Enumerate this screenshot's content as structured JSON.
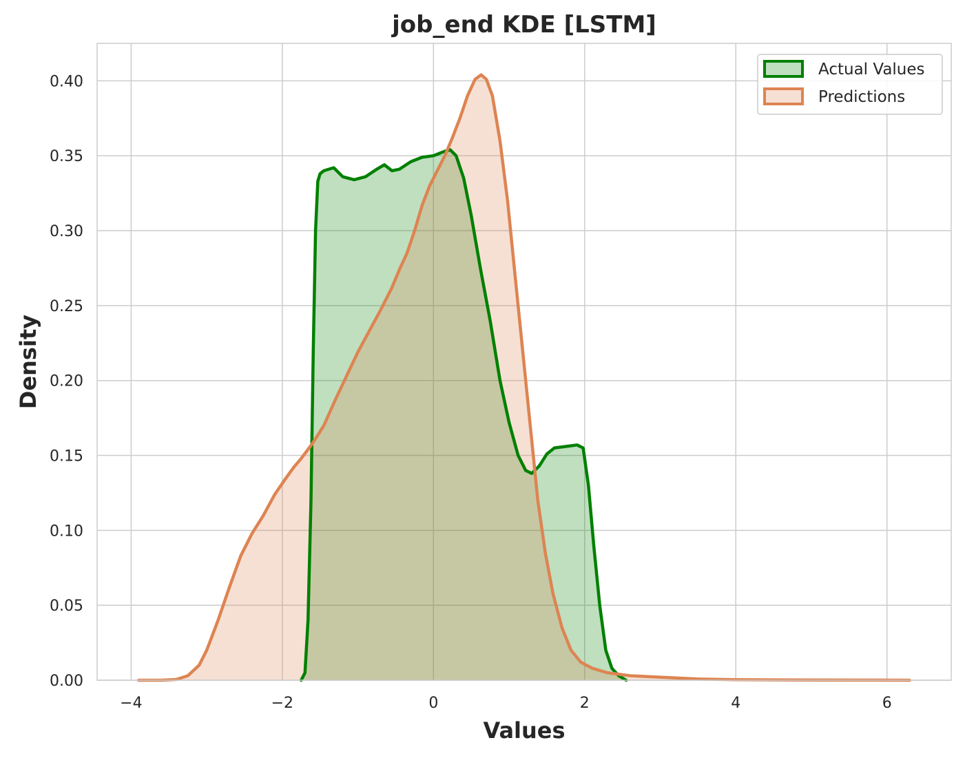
{
  "chart_data": {
    "type": "area",
    "title": "job_end KDE [LSTM]",
    "xlabel": "Values",
    "ylabel": "Density",
    "xlim": [
      -4.45,
      6.85
    ],
    "ylim": [
      0,
      0.425
    ],
    "xticks": [
      -4,
      -2,
      0,
      2,
      4,
      6
    ],
    "xtick_labels": [
      "−4",
      "−2",
      "0",
      "2",
      "4",
      "6"
    ],
    "yticks": [
      0,
      0.05,
      0.1,
      0.15,
      0.2,
      0.25,
      0.3,
      0.35,
      0.4
    ],
    "ytick_labels": [
      "0.00",
      "0.05",
      "0.10",
      "0.15",
      "0.20",
      "0.25",
      "0.30",
      "0.35",
      "0.40"
    ],
    "grid": true,
    "legend": "top-right",
    "series": [
      {
        "name": "Actual Values",
        "color": "#008000",
        "fill_opacity": 0.25,
        "points": [
          [
            -1.75,
            0.0
          ],
          [
            -1.7,
            0.005
          ],
          [
            -1.66,
            0.04
          ],
          [
            -1.62,
            0.12
          ],
          [
            -1.59,
            0.22
          ],
          [
            -1.56,
            0.3
          ],
          [
            -1.53,
            0.333
          ],
          [
            -1.5,
            0.338
          ],
          [
            -1.45,
            0.34
          ],
          [
            -1.32,
            0.342
          ],
          [
            -1.2,
            0.336
          ],
          [
            -1.05,
            0.334
          ],
          [
            -0.9,
            0.336
          ],
          [
            -0.75,
            0.341
          ],
          [
            -0.65,
            0.344
          ],
          [
            -0.55,
            0.34
          ],
          [
            -0.45,
            0.341
          ],
          [
            -0.3,
            0.346
          ],
          [
            -0.15,
            0.349
          ],
          [
            0.0,
            0.35
          ],
          [
            0.15,
            0.353
          ],
          [
            0.22,
            0.354
          ],
          [
            0.3,
            0.35
          ],
          [
            0.4,
            0.335
          ],
          [
            0.5,
            0.31
          ],
          [
            0.62,
            0.275
          ],
          [
            0.75,
            0.24
          ],
          [
            0.88,
            0.2
          ],
          [
            1.0,
            0.172
          ],
          [
            1.12,
            0.15
          ],
          [
            1.22,
            0.14
          ],
          [
            1.3,
            0.138
          ],
          [
            1.4,
            0.143
          ],
          [
            1.5,
            0.151
          ],
          [
            1.6,
            0.155
          ],
          [
            1.75,
            0.156
          ],
          [
            1.9,
            0.157
          ],
          [
            1.98,
            0.155
          ],
          [
            2.05,
            0.13
          ],
          [
            2.12,
            0.09
          ],
          [
            2.2,
            0.05
          ],
          [
            2.28,
            0.02
          ],
          [
            2.36,
            0.008
          ],
          [
            2.45,
            0.003
          ],
          [
            2.55,
            0.0
          ]
        ]
      },
      {
        "name": "Predictions",
        "color": "#dd8452",
        "fill_opacity": 0.25,
        "points": [
          [
            -3.9,
            0.0
          ],
          [
            -3.6,
            0.0
          ],
          [
            -3.4,
            0.0005
          ],
          [
            -3.25,
            0.003
          ],
          [
            -3.1,
            0.01
          ],
          [
            -3.0,
            0.02
          ],
          [
            -2.85,
            0.04
          ],
          [
            -2.7,
            0.062
          ],
          [
            -2.55,
            0.083
          ],
          [
            -2.4,
            0.098
          ],
          [
            -2.25,
            0.11
          ],
          [
            -2.1,
            0.124
          ],
          [
            -1.95,
            0.135
          ],
          [
            -1.85,
            0.142
          ],
          [
            -1.75,
            0.148
          ],
          [
            -1.6,
            0.158
          ],
          [
            -1.45,
            0.17
          ],
          [
            -1.3,
            0.187
          ],
          [
            -1.15,
            0.203
          ],
          [
            -1.0,
            0.219
          ],
          [
            -0.85,
            0.233
          ],
          [
            -0.7,
            0.247
          ],
          [
            -0.55,
            0.262
          ],
          [
            -0.45,
            0.274
          ],
          [
            -0.35,
            0.285
          ],
          [
            -0.25,
            0.3
          ],
          [
            -0.15,
            0.317
          ],
          [
            -0.05,
            0.33
          ],
          [
            0.05,
            0.34
          ],
          [
            0.15,
            0.35
          ],
          [
            0.25,
            0.362
          ],
          [
            0.35,
            0.375
          ],
          [
            0.45,
            0.39
          ],
          [
            0.55,
            0.401
          ],
          [
            0.63,
            0.404
          ],
          [
            0.7,
            0.401
          ],
          [
            0.78,
            0.39
          ],
          [
            0.88,
            0.36
          ],
          [
            0.98,
            0.32
          ],
          [
            1.08,
            0.27
          ],
          [
            1.18,
            0.22
          ],
          [
            1.28,
            0.17
          ],
          [
            1.38,
            0.12
          ],
          [
            1.48,
            0.085
          ],
          [
            1.58,
            0.058
          ],
          [
            1.7,
            0.035
          ],
          [
            1.82,
            0.02
          ],
          [
            1.95,
            0.012
          ],
          [
            2.1,
            0.008
          ],
          [
            2.3,
            0.005
          ],
          [
            2.6,
            0.003
          ],
          [
            3.0,
            0.002
          ],
          [
            3.5,
            0.0008
          ],
          [
            4.0,
            0.0003
          ],
          [
            5.0,
            0.0001
          ],
          [
            6.3,
            0.0
          ]
        ]
      }
    ]
  }
}
